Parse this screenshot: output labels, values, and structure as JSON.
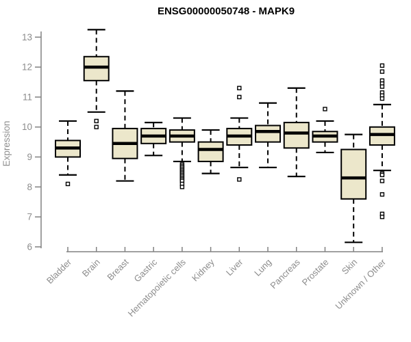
{
  "chart_data": {
    "type": "boxplot",
    "title": "ENSG00000050748 - MAPK9",
    "xlabel": "",
    "ylabel": "Expression",
    "ylim": [
      6,
      13
    ],
    "yticks": [
      6,
      7,
      8,
      9,
      10,
      11,
      12,
      13
    ],
    "grid": false,
    "legend": "none",
    "categories": [
      "Bladder",
      "Brain",
      "Breast",
      "Gastric",
      "Hematopoietic cells",
      "Kidney",
      "Liver",
      "Lung",
      "Pancreas",
      "Prostate",
      "Skin",
      "Unknown / Other"
    ],
    "series": [
      {
        "category": "Bladder",
        "low": 8.4,
        "q1": 9.0,
        "median": 9.3,
        "q3": 9.55,
        "high": 10.2,
        "outliers": [
          8.1
        ]
      },
      {
        "category": "Brain",
        "low": 10.5,
        "q1": 11.55,
        "median": 12.0,
        "q3": 12.35,
        "high": 13.25,
        "outliers": [
          10.2,
          10.0
        ]
      },
      {
        "category": "Breast",
        "low": 8.2,
        "q1": 8.95,
        "median": 9.45,
        "q3": 9.95,
        "high": 11.2,
        "outliers": []
      },
      {
        "category": "Gastric",
        "low": 9.05,
        "q1": 9.45,
        "median": 9.7,
        "q3": 9.95,
        "high": 10.15,
        "outliers": []
      },
      {
        "category": "Hematopoietic cells",
        "low": 8.85,
        "q1": 9.5,
        "median": 9.7,
        "q3": 9.9,
        "high": 10.3,
        "outliers": [
          8.75,
          8.7,
          8.65,
          8.6,
          8.55,
          8.5,
          8.45,
          8.4,
          8.35,
          8.3,
          8.25,
          8.2,
          8.1,
          8.0
        ]
      },
      {
        "category": "Kidney",
        "low": 8.45,
        "q1": 8.85,
        "median": 9.25,
        "q3": 9.5,
        "high": 9.9,
        "outliers": []
      },
      {
        "category": "Liver",
        "low": 8.65,
        "q1": 9.4,
        "median": 9.7,
        "q3": 9.95,
        "high": 10.3,
        "outliers": [
          11.3,
          11.0,
          8.25
        ]
      },
      {
        "category": "Lung",
        "low": 8.65,
        "q1": 9.5,
        "median": 9.85,
        "q3": 10.05,
        "high": 10.8,
        "outliers": []
      },
      {
        "category": "Pancreas",
        "low": 8.35,
        "q1": 9.3,
        "median": 9.8,
        "q3": 10.15,
        "high": 11.3,
        "outliers": []
      },
      {
        "category": "Prostate",
        "low": 9.15,
        "q1": 9.5,
        "median": 9.7,
        "q3": 9.85,
        "high": 10.2,
        "outliers": [
          10.6
        ]
      },
      {
        "category": "Skin",
        "low": 6.15,
        "q1": 7.6,
        "median": 8.3,
        "q3": 9.25,
        "high": 9.75,
        "outliers": []
      },
      {
        "category": "Unknown / Other",
        "low": 8.55,
        "q1": 9.4,
        "median": 9.75,
        "q3": 10.0,
        "high": 10.75,
        "outliers": [
          12.05,
          11.85,
          11.55,
          11.45,
          11.35,
          11.15,
          11.05,
          10.95,
          8.45,
          8.4,
          8.2,
          7.75,
          7.1,
          7.0
        ]
      }
    ],
    "colors": {
      "box_fill": "#ece7cb",
      "box_stroke": "#000000",
      "median": "#000000",
      "whisker": "#000000",
      "outlier_fill": "#ffffff",
      "axis": "#808080",
      "tick_label": "#8c8c8c",
      "title": "#000000",
      "background": "#ffffff"
    }
  }
}
